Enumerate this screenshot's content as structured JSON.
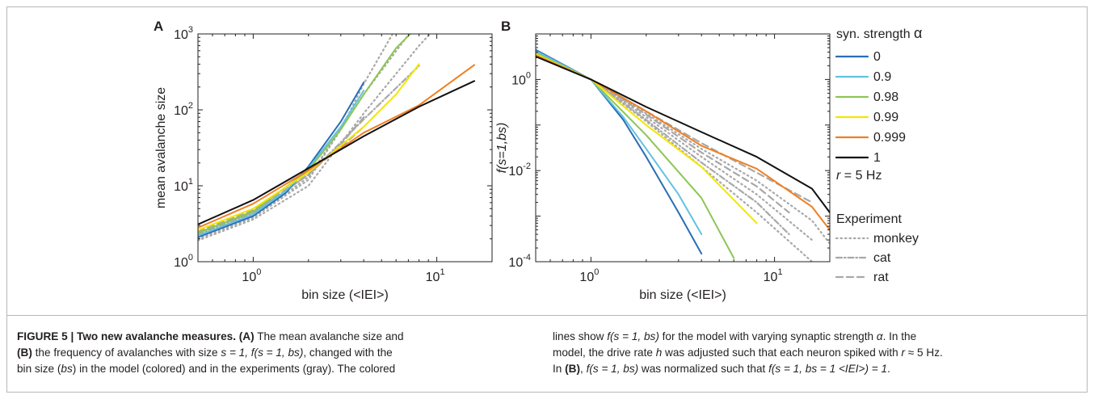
{
  "figure": {
    "panel_a_label": "A",
    "panel_b_label": "B",
    "legend": {
      "title_prefix": "syn. strength ",
      "title_symbol": "α",
      "rate_prefix": "r",
      "rate_suffix": " = 5 Hz",
      "experiment_title": "Experiment"
    }
  },
  "chart_data": [
    {
      "panel": "A",
      "type": "line",
      "xscale": "log",
      "yscale": "log",
      "xlabel": "bin size (<IEI>)",
      "ylabel": "mean avalanche size",
      "xlim": [
        0.5,
        20
      ],
      "ylim": [
        1,
        1000
      ],
      "x_ticks": [
        {
          "base": "10",
          "exp": "0"
        },
        {
          "base": "10",
          "exp": "1"
        }
      ],
      "y_ticks": [
        {
          "base": "10",
          "exp": "0"
        },
        {
          "base": "10",
          "exp": "1"
        },
        {
          "base": "10",
          "exp": "2"
        },
        {
          "base": "10",
          "exp": "3"
        }
      ],
      "series": [
        {
          "name": "0",
          "color": "#2a6db5",
          "style": "solid",
          "points": [
            [
              0.5,
              2.1
            ],
            [
              1,
              4.0
            ],
            [
              1.5,
              8
            ],
            [
              2,
              18
            ],
            [
              3,
              70
            ],
            [
              4,
              230
            ]
          ]
        },
        {
          "name": "0.9",
          "color": "#62c2e0",
          "style": "solid",
          "points": [
            [
              0.5,
              2.2
            ],
            [
              1,
              4.2
            ],
            [
              1.5,
              8.5
            ],
            [
              2,
              17
            ],
            [
              3,
              60
            ],
            [
              4,
              180
            ]
          ]
        },
        {
          "name": "0.98",
          "color": "#8dc653",
          "style": "solid",
          "points": [
            [
              0.5,
              2.4
            ],
            [
              1,
              4.6
            ],
            [
              2,
              16
            ],
            [
              3,
              55
            ],
            [
              4,
              160
            ],
            [
              6,
              650
            ],
            [
              8,
              1300
            ]
          ]
        },
        {
          "name": "0.99",
          "color": "#f2e600",
          "style": "solid",
          "points": [
            [
              0.5,
              2.6
            ],
            [
              1,
              5.0
            ],
            [
              2,
              15
            ],
            [
              4,
              60
            ],
            [
              6,
              160
            ],
            [
              8,
              400
            ]
          ]
        },
        {
          "name": "0.999",
          "color": "#f07f22",
          "style": "solid",
          "points": [
            [
              0.5,
              2.8
            ],
            [
              1,
              5.8
            ],
            [
              2,
              16
            ],
            [
              4,
              50
            ],
            [
              8,
              115
            ],
            [
              16,
              390
            ]
          ]
        },
        {
          "name": "1",
          "color": "#111111",
          "style": "solid",
          "points": [
            [
              0.5,
              3.1
            ],
            [
              1,
              6.5
            ],
            [
              2,
              17
            ],
            [
              4,
              45
            ],
            [
              8,
              110
            ],
            [
              16,
              240
            ]
          ]
        },
        {
          "name": "monkey",
          "color": "#a8a8a8",
          "style": "dotted",
          "points": [
            [
              0.5,
              2.0
            ],
            [
              1,
              3.8
            ],
            [
              2,
              12
            ],
            [
              3,
              55
            ],
            [
              4,
              220
            ],
            [
              6,
              1200
            ]
          ]
        },
        {
          "name": "monkey",
          "color": "#a8a8a8",
          "style": "dotted",
          "points": [
            [
              0.5,
              2.0
            ],
            [
              1,
              3.9
            ],
            [
              2,
              13
            ],
            [
              4,
              160
            ],
            [
              8,
              1500
            ]
          ]
        },
        {
          "name": "monkey",
          "color": "#a8a8a8",
          "style": "dotted",
          "points": [
            [
              0.5,
              1.9
            ],
            [
              1,
              3.6
            ],
            [
              2,
              10
            ],
            [
              4,
              90
            ],
            [
              8,
              700
            ],
            [
              12,
              2000
            ]
          ]
        },
        {
          "name": "cat",
          "color": "#a8a8a8",
          "style": "dashdot",
          "points": [
            [
              0.5,
              2.3
            ],
            [
              1,
              4.4
            ],
            [
              2,
              14
            ],
            [
              4,
              75
            ],
            [
              8,
              380
            ]
          ]
        },
        {
          "name": "rat",
          "color": "#a8a8a8",
          "style": "dashed",
          "points": [
            [
              0.5,
              2.4
            ],
            [
              1,
              4.5
            ],
            [
              2,
              14
            ],
            [
              3,
              35
            ],
            [
              4,
              80
            ]
          ]
        },
        {
          "name": "rat",
          "color": "#a8a8a8",
          "style": "dashed",
          "points": [
            [
              0.5,
              2.5
            ],
            [
              1,
              4.8
            ],
            [
              2,
              15
            ],
            [
              3,
              32
            ],
            [
              4,
              60
            ]
          ]
        }
      ]
    },
    {
      "panel": "B",
      "type": "line",
      "xscale": "log",
      "yscale": "log",
      "xlabel": "bin size (<IEI>)",
      "ylabel": "f(s=1,bs)",
      "xlim": [
        0.5,
        20
      ],
      "ylim": [
        0.0001,
        10
      ],
      "x_ticks": [
        {
          "base": "10",
          "exp": "0"
        },
        {
          "base": "10",
          "exp": "1"
        }
      ],
      "y_ticks": [
        {
          "base": "10",
          "exp": "-4"
        },
        {
          "base": "10",
          "exp": "-2"
        },
        {
          "base": "10",
          "exp": "0"
        }
      ],
      "series": [
        {
          "name": "0",
          "color": "#2a6db5",
          "style": "solid",
          "points": [
            [
              0.5,
              4.5
            ],
            [
              1,
              1.0
            ],
            [
              1.5,
              0.13
            ],
            [
              2,
              0.02
            ],
            [
              3,
              0.0012
            ],
            [
              4,
              0.00015
            ]
          ]
        },
        {
          "name": "0.9",
          "color": "#62c2e0",
          "style": "solid",
          "points": [
            [
              0.5,
              4.2
            ],
            [
              1,
              1.0
            ],
            [
              1.5,
              0.15
            ],
            [
              2,
              0.03
            ],
            [
              3,
              0.003
            ],
            [
              4,
              0.0004
            ]
          ]
        },
        {
          "name": "0.98",
          "color": "#8dc653",
          "style": "solid",
          "points": [
            [
              0.5,
              3.8
            ],
            [
              1,
              1.0
            ],
            [
              2,
              0.06
            ],
            [
              4,
              0.0025
            ],
            [
              6,
              0.00012
            ]
          ]
        },
        {
          "name": "0.99",
          "color": "#f2e600",
          "style": "solid",
          "points": [
            [
              0.5,
              3.6
            ],
            [
              1,
              1.0
            ],
            [
              2,
              0.1
            ],
            [
              4,
              0.012
            ],
            [
              8,
              0.0007
            ]
          ]
        },
        {
          "name": "0.999",
          "color": "#f07f22",
          "style": "solid",
          "points": [
            [
              0.5,
              3.4
            ],
            [
              1,
              1.0
            ],
            [
              2,
              0.2
            ],
            [
              4,
              0.035
            ],
            [
              8,
              0.011
            ],
            [
              16,
              0.0016
            ],
            [
              20,
              0.0005
            ]
          ]
        },
        {
          "name": "1",
          "color": "#111111",
          "style": "solid",
          "points": [
            [
              0.5,
              3.2
            ],
            [
              1,
              1.0
            ],
            [
              2,
              0.25
            ],
            [
              4,
              0.07
            ],
            [
              8,
              0.02
            ],
            [
              16,
              0.004
            ],
            [
              20,
              0.0012
            ]
          ]
        },
        {
          "name": "monkey",
          "color": "#a8a8a8",
          "style": "dotted",
          "points": [
            [
              0.5,
              4.0
            ],
            [
              1,
              1.0
            ],
            [
              2,
              0.12
            ],
            [
              4,
              0.012
            ],
            [
              8,
              0.0012
            ],
            [
              16,
              0.0001
            ]
          ]
        },
        {
          "name": "monkey",
          "color": "#a8a8a8",
          "style": "dotted",
          "points": [
            [
              0.5,
              3.9
            ],
            [
              1,
              1.0
            ],
            [
              2,
              0.15
            ],
            [
              4,
              0.02
            ],
            [
              8,
              0.003
            ],
            [
              16,
              0.0003
            ]
          ]
        },
        {
          "name": "monkey",
          "color": "#a8a8a8",
          "style": "dotted",
          "points": [
            [
              0.5,
              3.7
            ],
            [
              1,
              1.0
            ],
            [
              2,
              0.18
            ],
            [
              4,
              0.03
            ],
            [
              8,
              0.006
            ],
            [
              16,
              0.0008
            ],
            [
              20,
              0.00025
            ]
          ]
        },
        {
          "name": "cat",
          "color": "#a8a8a8",
          "style": "dashdot",
          "points": [
            [
              0.5,
              4.0
            ],
            [
              1,
              1.0
            ],
            [
              2,
              0.13
            ],
            [
              4,
              0.015
            ],
            [
              8,
              0.002
            ],
            [
              12,
              0.0004
            ]
          ]
        },
        {
          "name": "rat",
          "color": "#a8a8a8",
          "style": "dashed",
          "points": [
            [
              0.5,
              3.6
            ],
            [
              1,
              1.0
            ],
            [
              2,
              0.17
            ],
            [
              4,
              0.025
            ],
            [
              8,
              0.0045
            ],
            [
              12,
              0.0012
            ]
          ]
        },
        {
          "name": "rat",
          "color": "#a8a8a8",
          "style": "dashed",
          "points": [
            [
              0.5,
              3.5
            ],
            [
              1,
              1.0
            ],
            [
              2,
              0.2
            ],
            [
              4,
              0.04
            ],
            [
              8,
              0.009
            ],
            [
              16,
              0.002
            ]
          ]
        }
      ]
    }
  ],
  "legend_items": [
    {
      "label": "0",
      "color": "#2a6db5",
      "style": "solid"
    },
    {
      "label": "0.9",
      "color": "#62c2e0",
      "style": "solid"
    },
    {
      "label": "0.98",
      "color": "#8dc653",
      "style": "solid"
    },
    {
      "label": "0.99",
      "color": "#f2e600",
      "style": "solid"
    },
    {
      "label": "0.999",
      "color": "#f07f22",
      "style": "solid"
    },
    {
      "label": "1",
      "color": "#111111",
      "style": "solid"
    }
  ],
  "experiment_items": [
    {
      "label": "monkey",
      "color": "#a8a8a8",
      "style": "dotted"
    },
    {
      "label": "cat",
      "color": "#a8a8a8",
      "style": "dashdot"
    },
    {
      "label": "rat",
      "color": "#a8a8a8",
      "style": "dashed"
    }
  ],
  "caption": {
    "figure_label": "FIGURE 5 | Two new avalanche measures.",
    "ref_a": "(A)",
    "ref_b": "(B)",
    "left": {
      "l1": "The mean avalanche size and",
      "l2a": "the frequency of avalanches with size ",
      "l2b": "s = 1, f(s = 1,  bs)",
      "l2c": ", changed with the",
      "l3a": "bin size (",
      "l3b": "bs",
      "l3c": ") in the model (colored) and in the experiments (gray). The colored"
    },
    "right": {
      "l1a": "lines show ",
      "l1b": "f(s = 1,  bs)",
      "l1c": " for the model with varying synaptic strength ",
      "l1d": "α",
      "l1e": ". In the",
      "l2a": "model, the drive rate ",
      "l2b": "h",
      "l2c": " was adjusted such that each neuron spiked with ",
      "l2d": "r",
      "l2e": " ≈ 5 Hz.",
      "l3a": "In ",
      "l3c": ", ",
      "l3d": "f(s = 1,  bs)",
      "l3e": " was normalized such that ",
      "l3f": "f(s = 1,  bs = 1 <IEI>) = 1",
      "l3g": "."
    }
  }
}
